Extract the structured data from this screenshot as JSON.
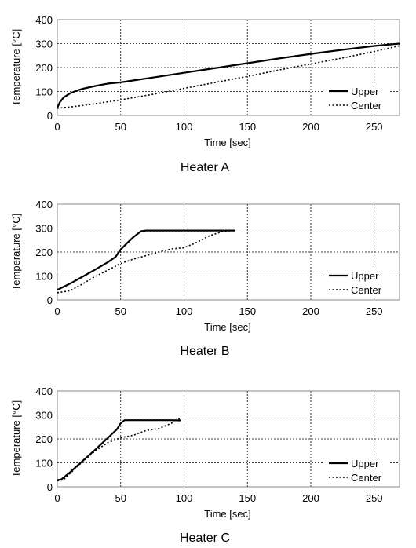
{
  "chart_data": [
    {
      "type": "line",
      "title": "Heater A",
      "xlabel": "Time [sec]",
      "ylabel": "Temperature [°C]",
      "xlim": [
        0,
        270
      ],
      "ylim": [
        0,
        400
      ],
      "xticks": [
        0,
        50,
        100,
        150,
        200,
        250
      ],
      "yticks": [
        0,
        100,
        200,
        300,
        400
      ],
      "grid": "dashed vertical and horizontal",
      "legend": "right",
      "series": [
        {
          "name": "Upper",
          "style": "solid",
          "x": [
            0,
            2,
            5,
            10,
            15,
            20,
            30,
            40,
            50,
            75,
            100,
            125,
            150,
            175,
            200,
            225,
            250,
            270
          ],
          "y": [
            32,
            55,
            75,
            92,
            103,
            111,
            123,
            133,
            138,
            158,
            178,
            198,
            218,
            238,
            257,
            274,
            290,
            300
          ]
        },
        {
          "name": "Center",
          "style": "dotted",
          "x": [
            0,
            10,
            25,
            40,
            50,
            75,
            100,
            125,
            150,
            175,
            200,
            225,
            250,
            270
          ],
          "y": [
            30,
            35,
            45,
            57,
            65,
            88,
            113,
            138,
            163,
            190,
            215,
            240,
            267,
            291
          ]
        }
      ]
    },
    {
      "type": "line",
      "title": "Heater B",
      "xlabel": "Time [sec]",
      "ylabel": "Temperature [°C]",
      "xlim": [
        0,
        270
      ],
      "ylim": [
        0,
        400
      ],
      "xticks": [
        0,
        50,
        100,
        150,
        200,
        250
      ],
      "yticks": [
        0,
        100,
        200,
        300,
        400
      ],
      "grid": "dashed vertical and horizontal",
      "legend": "right",
      "series": [
        {
          "name": "Upper",
          "style": "solid",
          "x": [
            0,
            10,
            20,
            30,
            40,
            46,
            50,
            55,
            60,
            66,
            70,
            80,
            100,
            120,
            140
          ],
          "y": [
            42,
            68,
            97,
            127,
            158,
            180,
            210,
            237,
            262,
            287,
            290,
            290,
            290,
            290,
            290
          ]
        },
        {
          "name": "Center",
          "style": "dotted",
          "x": [
            0,
            10,
            20,
            30,
            40,
            50,
            60,
            70,
            80,
            90,
            100,
            110,
            120,
            130,
            140
          ],
          "y": [
            30,
            38,
            67,
            98,
            125,
            152,
            170,
            185,
            200,
            213,
            218,
            240,
            268,
            285,
            292
          ]
        }
      ]
    },
    {
      "type": "line",
      "title": "Heater C",
      "xlabel": "Time [sec]",
      "ylabel": "Temperature [°C]",
      "xlim": [
        0,
        270
      ],
      "ylim": [
        0,
        400
      ],
      "xticks": [
        0,
        50,
        100,
        150,
        200,
        250
      ],
      "yticks": [
        0,
        100,
        200,
        300,
        400
      ],
      "grid": "dashed vertical and horizontal",
      "legend": "right",
      "series": [
        {
          "name": "Upper",
          "style": "solid",
          "x": [
            0,
            3,
            10,
            20,
            30,
            40,
            47,
            50,
            53,
            60,
            70,
            80,
            90,
            97
          ],
          "y": [
            28,
            30,
            60,
            108,
            155,
            205,
            240,
            265,
            278,
            278,
            278,
            278,
            278,
            277
          ]
        },
        {
          "name": "Center",
          "style": "dotted",
          "x": [
            0,
            5,
            10,
            20,
            30,
            40,
            50,
            60,
            70,
            80,
            90,
            95,
            97
          ],
          "y": [
            25,
            30,
            55,
            105,
            150,
            185,
            205,
            215,
            235,
            243,
            265,
            290,
            275
          ]
        }
      ]
    }
  ]
}
